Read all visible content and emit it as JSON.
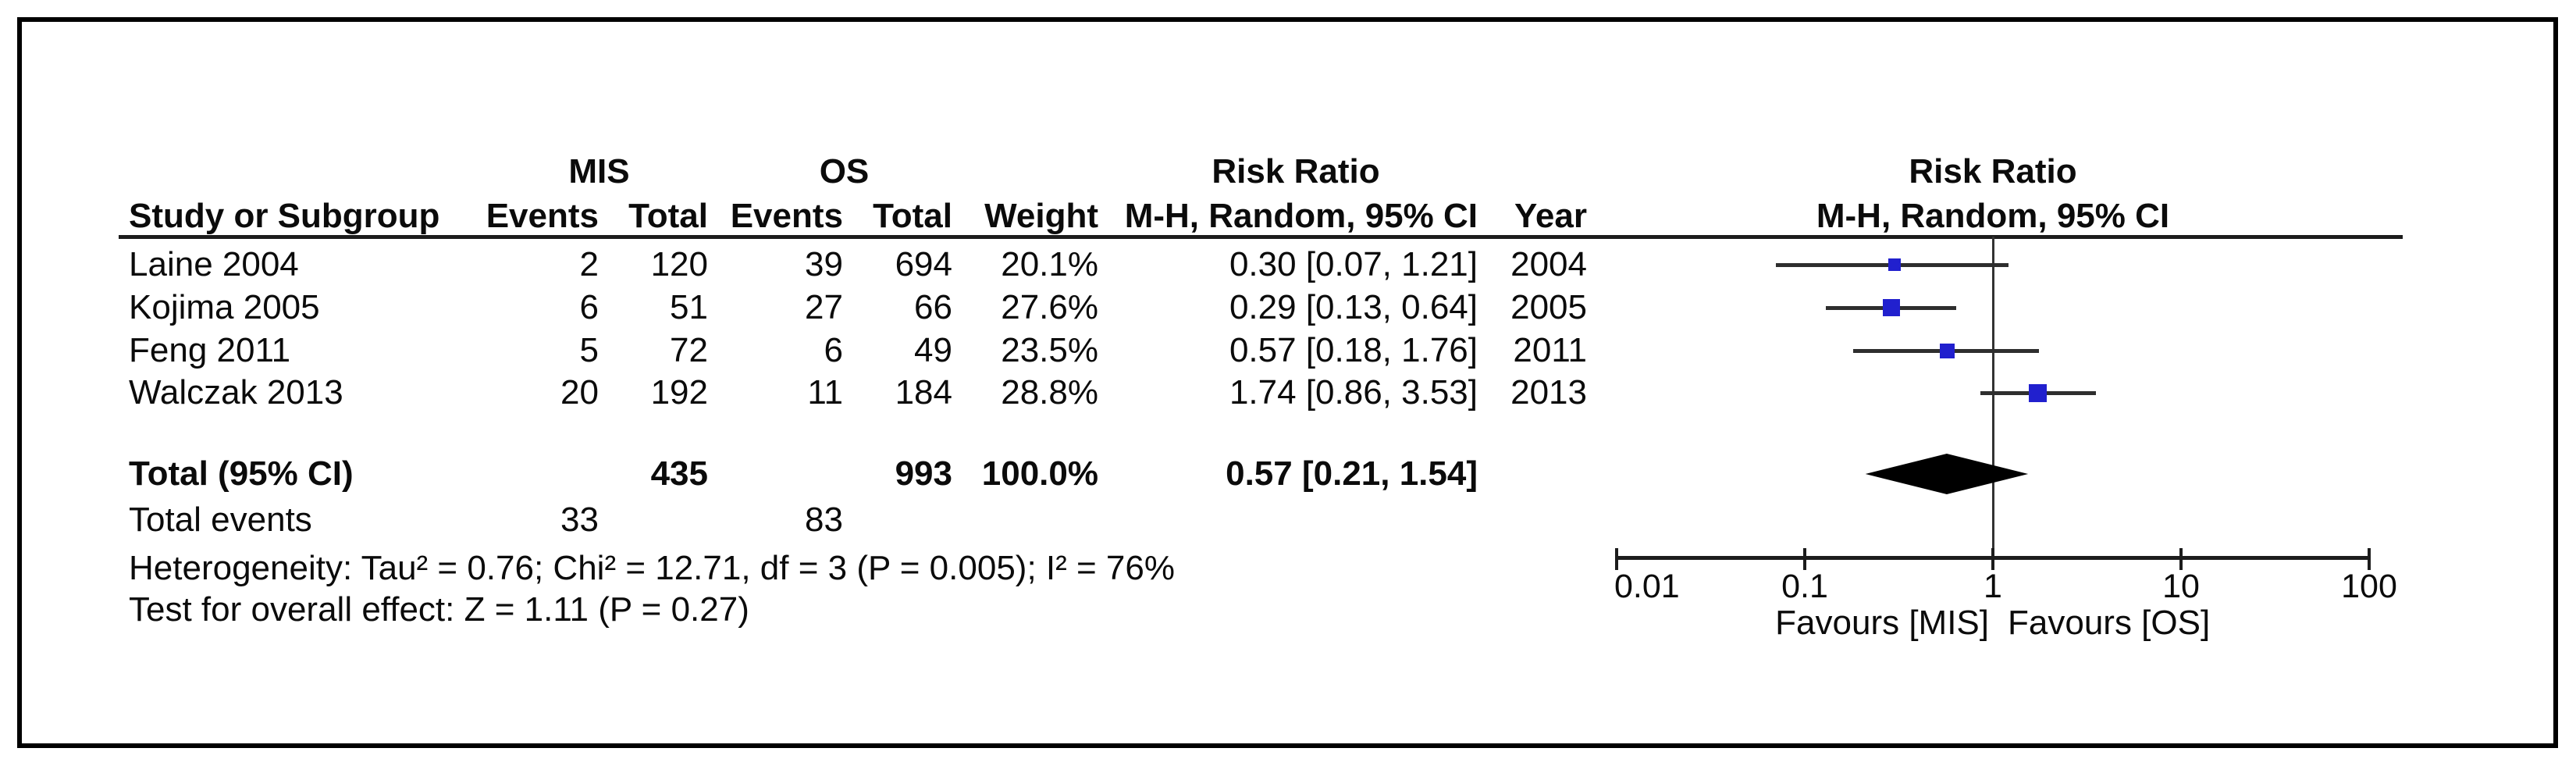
{
  "figure": {
    "group_headers": {
      "mis": "MIS",
      "os": "OS",
      "risk_ratio": "Risk Ratio",
      "plot_title": "Risk Ratio"
    },
    "col_headers": {
      "study": "Study or Subgroup",
      "events": "Events",
      "total": "Total",
      "events2": "Events",
      "total2": "Total",
      "weight": "Weight",
      "mh_ci": "M-H, Random, 95% CI",
      "year": "Year",
      "plot_subtitle": "M-H, Random, 95% CI"
    },
    "rows": [
      {
        "study": "Laine 2004",
        "mis_events": "2",
        "mis_total": "120",
        "os_events": "39",
        "os_total": "694",
        "weight": "20.1%",
        "rr_ci": "0.30 [0.07, 1.21]",
        "year": "2004"
      },
      {
        "study": "Kojima 2005",
        "mis_events": "6",
        "mis_total": "51",
        "os_events": "27",
        "os_total": "66",
        "weight": "27.6%",
        "rr_ci": "0.29 [0.13, 0.64]",
        "year": "2005"
      },
      {
        "study": "Feng 2011",
        "mis_events": "5",
        "mis_total": "72",
        "os_events": "6",
        "os_total": "49",
        "weight": "23.5%",
        "rr_ci": "0.57 [0.18, 1.76]",
        "year": "2011"
      },
      {
        "study": "Walczak 2013",
        "mis_events": "20",
        "mis_total": "192",
        "os_events": "11",
        "os_total": "184",
        "weight": "28.8%",
        "rr_ci": "1.74 [0.86, 3.53]",
        "year": "2013"
      }
    ],
    "total_row": {
      "label": "Total (95% CI)",
      "mis_total": "435",
      "os_total": "993",
      "weight": "100.0%",
      "rr_ci": "0.57 [0.21, 1.54]"
    },
    "total_events": {
      "label": "Total events",
      "mis": "33",
      "os": "83"
    },
    "heterogeneity": "Heterogeneity: Tau² = 0.76; Chi² = 12.71, df = 3 (P = 0.005); I² = 76%",
    "overall_effect": "Test for overall effect: Z = 1.11 (P = 0.27)",
    "favours_left": "Favours [MIS]",
    "favours_right": "Favours [OS]"
  },
  "chart_data": {
    "type": "forest",
    "effect_measure": "Risk Ratio",
    "model": "M-H, Random, 95% CI",
    "x_scale": "log10",
    "axis_ticks": [
      0.01,
      0.1,
      1,
      10,
      100
    ],
    "axis_range": [
      0.01,
      100
    ],
    "null_line": 1,
    "studies": [
      {
        "name": "Laine 2004",
        "year": 2004,
        "mis_events": 2,
        "mis_total": 120,
        "os_events": 39,
        "os_total": 694,
        "weight_pct": 20.1,
        "rr": 0.3,
        "ci_low": 0.07,
        "ci_high": 1.21
      },
      {
        "name": "Kojima 2005",
        "year": 2005,
        "mis_events": 6,
        "mis_total": 51,
        "os_events": 27,
        "os_total": 66,
        "weight_pct": 27.6,
        "rr": 0.29,
        "ci_low": 0.13,
        "ci_high": 0.64
      },
      {
        "name": "Feng 2011",
        "year": 2011,
        "mis_events": 5,
        "mis_total": 72,
        "os_events": 6,
        "os_total": 49,
        "weight_pct": 23.5,
        "rr": 0.57,
        "ci_low": 0.18,
        "ci_high": 1.76
      },
      {
        "name": "Walczak 2013",
        "year": 2013,
        "mis_events": 20,
        "mis_total": 192,
        "os_events": 11,
        "os_total": 184,
        "weight_pct": 28.8,
        "rr": 1.74,
        "ci_low": 0.86,
        "ci_high": 3.53
      }
    ],
    "overall": {
      "label": "Total (95% CI)",
      "rr": 0.57,
      "ci_low": 0.21,
      "ci_high": 1.54,
      "weight_pct": 100.0,
      "mis_total": 435,
      "os_total": 993
    },
    "totals": {
      "mis_events": 33,
      "os_events": 83
    },
    "heterogeneity": {
      "tau2": 0.76,
      "chi2": 12.71,
      "df": 3,
      "p": 0.005,
      "i2_pct": 76
    },
    "overall_test": {
      "z": 1.11,
      "p": 0.27
    },
    "marker_color": "#2120ce",
    "diamond_color": "#000000",
    "favours_left": "Favours [MIS]",
    "favours_right": "Favours [OS]"
  }
}
